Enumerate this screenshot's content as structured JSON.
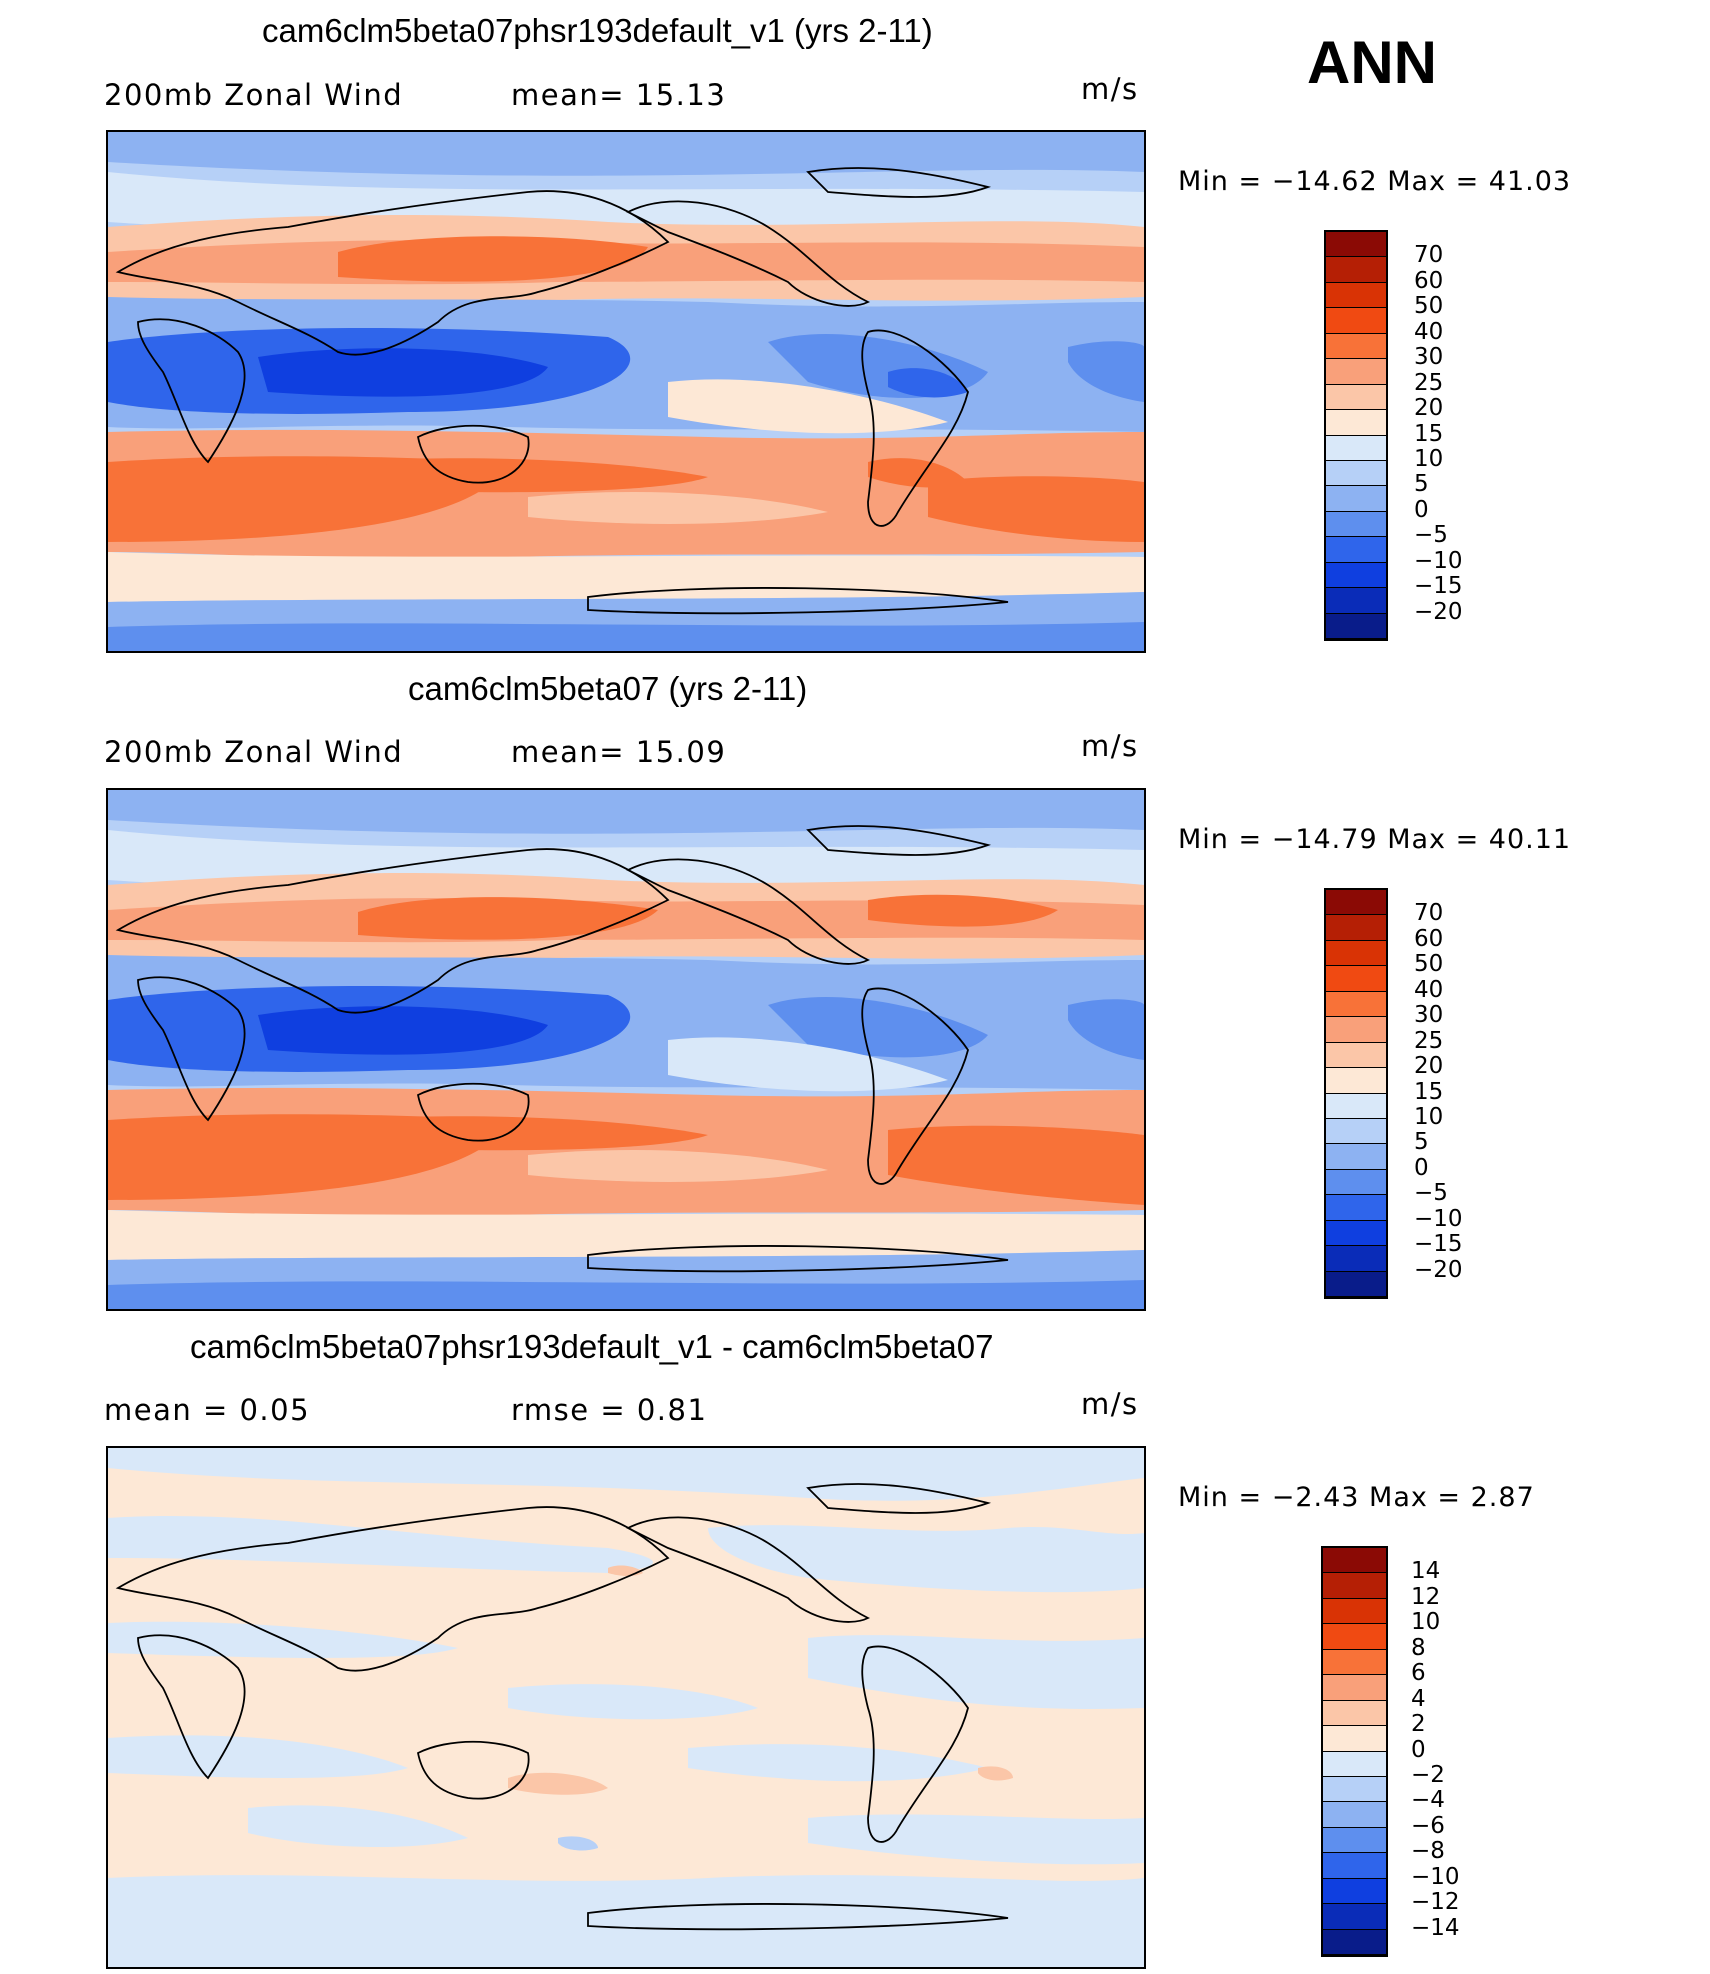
{
  "season": "ANN",
  "panels": [
    {
      "title": "cam6clm5beta07phsr193default_v1 (yrs 2-11)",
      "left_label": "200mb  Zonal  Wind",
      "mid_label": "mean=   15.13",
      "units": "m/s",
      "minmax": "Min  =  −14.62  Max  =    41.03",
      "colorbar_labels": [
        "70",
        "60",
        "50",
        "40",
        "30",
        "25",
        "20",
        "15",
        "10",
        "5",
        "0",
        "−5",
        "−10",
        "−15",
        "−20"
      ]
    },
    {
      "title": "cam6clm5beta07 (yrs 2-11)",
      "left_label": "200mb  Zonal  Wind",
      "mid_label": "mean=   15.09",
      "units": "m/s",
      "minmax": "Min  =  −14.79  Max  =    40.11",
      "colorbar_labels": [
        "70",
        "60",
        "50",
        "40",
        "30",
        "25",
        "20",
        "15",
        "10",
        "5",
        "0",
        "−5",
        "−10",
        "−15",
        "−20"
      ]
    },
    {
      "title": "cam6clm5beta07phsr193default_v1 - cam6clm5beta07",
      "left_label": "mean  =      0.05",
      "mid_label": "rmse  =      0.81",
      "units": "m/s",
      "minmax": "Min  =     −2.43  Max  =      2.87",
      "colorbar_labels": [
        "14",
        "12",
        "10",
        "8",
        "6",
        "4",
        "2",
        "0",
        "−2",
        "−4",
        "−6",
        "−8",
        "−10",
        "−12",
        "−14"
      ]
    }
  ],
  "colors": {
    "abs_scale": [
      "#8b0a05",
      "#b51f05",
      "#d93305",
      "#f04a12",
      "#f87238",
      "#f9a07a",
      "#fbc6a8",
      "#fde8d6",
      "#d9e8f9",
      "#b6d0f7",
      "#8db2f2",
      "#5e8fee",
      "#2f65eb",
      "#0f3fe0",
      "#0a2cb8",
      "#091c8a"
    ],
    "diff_scale": [
      "#8b0a05",
      "#b51f05",
      "#d93305",
      "#f04a12",
      "#f87238",
      "#f9a07a",
      "#fbc6a8",
      "#fde8d6",
      "#d9e8f9",
      "#b6d0f7",
      "#8db2f2",
      "#5e8fee",
      "#2f65eb",
      "#0f3fe0",
      "#0a2cb8",
      "#091c8a"
    ]
  }
}
